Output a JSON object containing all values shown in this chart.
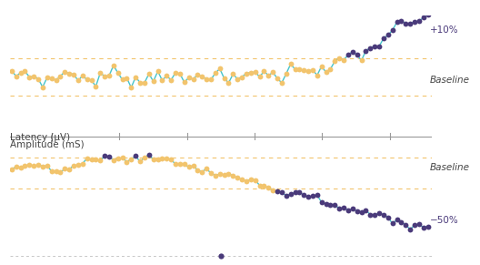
{
  "bg_color": "#ffffff",
  "line_color_cyan": "#45C4CB",
  "dot_color_orange": "#F2C46D",
  "dot_color_purple": "#4A3A7A",
  "dashed_color_orange": "#F2C46D",
  "dashed_color_gray": "#C8C8C8",
  "text_color_dark": "#444444",
  "baseline_text": "Baseline",
  "top_label": "+10%",
  "bottom_label": "−50%",
  "latency_label": "Latency (μV)",
  "amplitude_label": "Amplitude (mS)",
  "dot_size_orange": 4.2,
  "dot_size_purple": 4.2,
  "line_width": 1.0,
  "font_size_label": 7.5,
  "font_size_annot": 7.5
}
